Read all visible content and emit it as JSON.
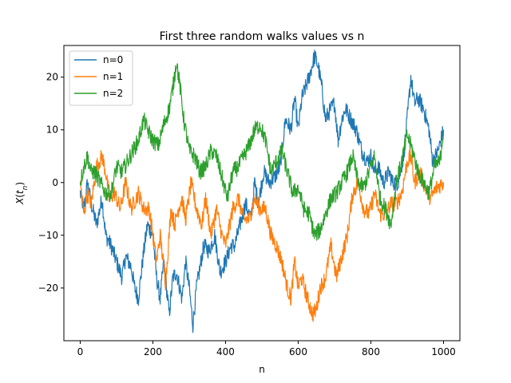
{
  "chart_data": {
    "type": "line",
    "title": "First three random walks values vs n",
    "xlabel": "n",
    "ylabel": "X(t_n)",
    "xlim": [
      -45,
      1045
    ],
    "ylim": [
      -30,
      26
    ],
    "xticks": [
      0,
      200,
      400,
      600,
      800,
      1000
    ],
    "yticks": [
      -20,
      -10,
      0,
      10,
      20
    ],
    "xtick_labels": [
      "0",
      "200",
      "400",
      "600",
      "800",
      "1000"
    ],
    "ytick_labels": [
      "−20",
      "−10",
      "0",
      "10",
      "20"
    ],
    "grid": false,
    "legend_position": "top-left",
    "series": [
      {
        "name": "n=0",
        "color": "#1f77b4",
        "x": [
          0,
          10,
          20,
          30,
          45,
          60,
          70,
          85,
          100,
          115,
          125,
          140,
          150,
          160,
          175,
          185,
          200,
          210,
          220,
          230,
          245,
          255,
          265,
          280,
          290,
          300,
          310,
          320,
          340,
          355,
          370,
          385,
          400,
          415,
          425,
          440,
          455,
          470,
          480,
          490,
          505,
          520,
          535,
          550,
          565,
          580,
          590,
          600,
          610,
          620,
          630,
          645,
          655,
          665,
          675,
          690,
          700,
          710,
          720,
          730,
          745,
          760,
          775,
          790,
          800,
          810,
          820,
          835,
          850,
          860,
          875,
          890,
          900,
          910,
          920,
          930,
          945,
          960,
          970,
          985,
          1000
        ],
        "values": [
          -2,
          -5,
          0,
          -4,
          -8,
          -3,
          -10,
          -12,
          -15,
          -18,
          -14,
          -16,
          -20,
          -22,
          -13,
          -8,
          -10,
          -18,
          -22,
          -15,
          -25,
          -18,
          -17,
          -22,
          -15,
          -20,
          -27,
          -20,
          -12,
          -13,
          -10,
          -17,
          -15,
          -12,
          -12,
          -8,
          -4,
          -7,
          0,
          -4,
          2,
          0,
          1,
          3,
          12,
          10,
          16,
          10,
          16,
          18,
          20,
          24,
          22,
          18,
          12,
          14,
          15,
          8,
          12,
          14,
          12,
          10,
          6,
          4,
          5,
          2,
          3,
          0,
          2,
          0,
          0,
          5,
          12,
          20,
          15,
          16,
          14,
          10,
          4,
          6,
          10
        ]
      },
      {
        "name": "n=1",
        "color": "#ff7f0e",
        "x": [
          0,
          10,
          20,
          30,
          45,
          60,
          70,
          80,
          95,
          110,
          125,
          140,
          160,
          175,
          190,
          200,
          210,
          220,
          235,
          250,
          260,
          270,
          280,
          290,
          305,
          320,
          335,
          345,
          360,
          375,
          390,
          400,
          420,
          435,
          450,
          465,
          480,
          495,
          510,
          525,
          540,
          555,
          570,
          580,
          590,
          600,
          610,
          625,
          640,
          650,
          660,
          675,
          690,
          705,
          720,
          735,
          750,
          765,
          780,
          795,
          810,
          825,
          840,
          855,
          870,
          885,
          900,
          910,
          920,
          935,
          950,
          965,
          980,
          1000
        ],
        "values": [
          0,
          -6,
          -2,
          -4,
          3,
          5,
          2,
          -3,
          -2,
          -5,
          0,
          -5,
          -2,
          -5,
          -5,
          -10,
          -15,
          -10,
          -19,
          -5,
          -8,
          -5,
          -3,
          -7,
          0,
          -5,
          -8,
          -3,
          -10,
          -5,
          -10,
          -12,
          -5,
          -3,
          -7,
          -7,
          -3,
          -5,
          -5,
          -10,
          -12,
          -15,
          -20,
          -22,
          -15,
          -20,
          -18,
          -22,
          -25,
          -24,
          -20,
          -18,
          -12,
          -18,
          -14,
          -10,
          -2,
          0,
          -5,
          -6,
          -2,
          -6,
          -6,
          -4,
          -4,
          -2,
          4,
          5,
          0,
          2,
          -1,
          -3,
          -1,
          0
        ]
      },
      {
        "name": "n=2",
        "color": "#2ca02c",
        "x": [
          0,
          10,
          20,
          30,
          40,
          55,
          70,
          85,
          100,
          115,
          130,
          145,
          160,
          175,
          185,
          200,
          215,
          230,
          245,
          255,
          265,
          275,
          285,
          300,
          315,
          330,
          345,
          360,
          375,
          390,
          405,
          420,
          435,
          450,
          465,
          480,
          495,
          510,
          525,
          540,
          555,
          570,
          585,
          600,
          615,
          630,
          645,
          660,
          675,
          690,
          705,
          720,
          735,
          750,
          765,
          780,
          795,
          810,
          825,
          840,
          855,
          870,
          885,
          900,
          915,
          930,
          945,
          960,
          975,
          990,
          1000
        ],
        "values": [
          0,
          3,
          5,
          2,
          2,
          0,
          -2,
          -2,
          3,
          2,
          4,
          6,
          8,
          12,
          10,
          8,
          7,
          11,
          14,
          18,
          23,
          18,
          12,
          6,
          5,
          2,
          3,
          6,
          5,
          1,
          -3,
          2,
          3,
          5,
          7,
          10,
          11,
          8,
          2,
          4,
          6,
          2,
          -2,
          -1,
          -5,
          -6,
          -10,
          -9,
          -6,
          -3,
          -2,
          0,
          2,
          5,
          0,
          -1,
          2,
          5,
          -3,
          -5,
          -8,
          0,
          4,
          9,
          6,
          2,
          0,
          -2,
          3,
          4,
          10
        ]
      }
    ]
  }
}
